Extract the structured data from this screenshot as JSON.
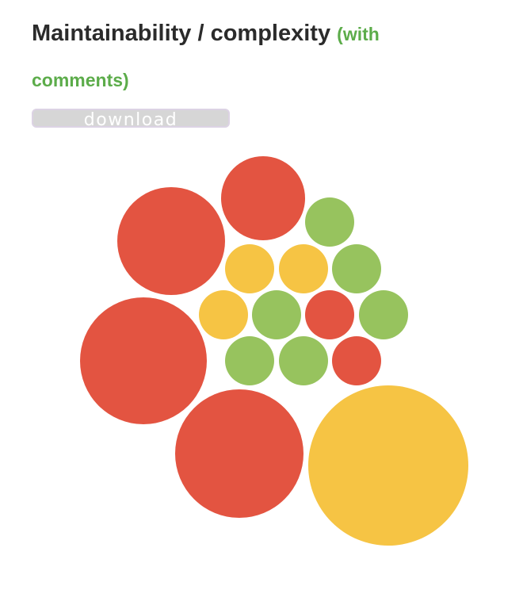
{
  "header": {
    "title": "Maintainability / complexity",
    "subtitle": "(with comments)"
  },
  "toolbar": {
    "download_label": "download"
  },
  "colors": {
    "high_complexity": "#e35441",
    "medium_complexity": "#f6c444",
    "low_complexity": "#97c35e"
  },
  "chart_data": {
    "type": "bubble",
    "title": "",
    "legend": "none",
    "bubbles": [
      {
        "size": 80,
        "level": "high"
      },
      {
        "size": 68,
        "level": "high"
      },
      {
        "size": 53,
        "level": "high"
      },
      {
        "size": 101,
        "level": "medium"
      },
      {
        "size": 81,
        "level": "high"
      },
      {
        "size": 31,
        "level": "low"
      },
      {
        "size": 31,
        "level": "medium"
      },
      {
        "size": 31,
        "level": "medium"
      },
      {
        "size": 31,
        "level": "low"
      },
      {
        "size": 31,
        "level": "medium"
      },
      {
        "size": 31,
        "level": "low"
      },
      {
        "size": 31,
        "level": "high"
      },
      {
        "size": 31,
        "level": "low"
      },
      {
        "size": 31,
        "level": "low"
      },
      {
        "size": 31,
        "level": "low"
      },
      {
        "size": 31,
        "level": "high"
      }
    ]
  }
}
